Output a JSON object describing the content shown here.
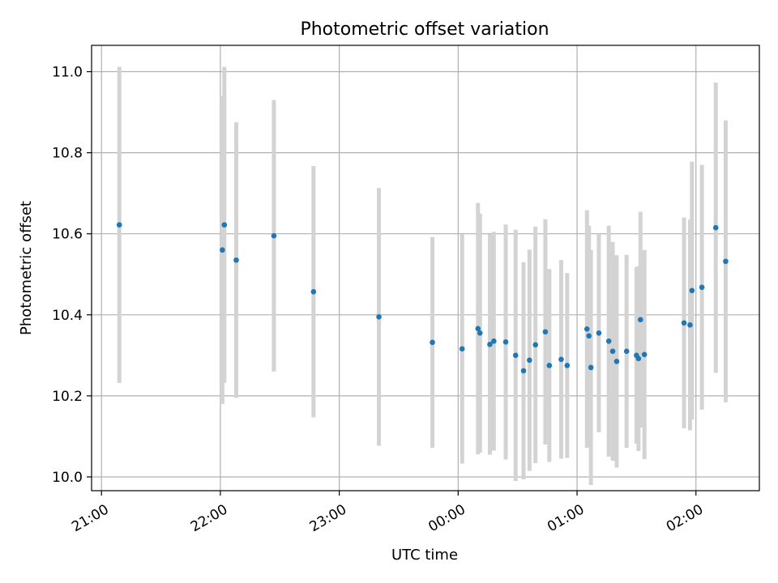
{
  "chart_data": {
    "type": "scatter",
    "title": "Photometric offset variation",
    "xlabel": "UTC time",
    "ylabel": "Photometric offset",
    "grid": true,
    "x_ticks": [
      "21:00",
      "22:00",
      "23:00",
      "00:00",
      "01:00",
      "02:00"
    ],
    "y_ticks": [
      "10.0",
      "10.2",
      "10.4",
      "10.6",
      "10.8",
      "11.0"
    ],
    "series": [
      {
        "marker_color": "#1f77b4",
        "errorbar_color": "#d3d3d3",
        "points": [
          {
            "x": "21:09",
            "y": 10.622,
            "err": 0.39
          },
          {
            "x": "22:01",
            "y": 10.56,
            "err": 0.38
          },
          {
            "x": "22:02",
            "y": 10.622,
            "err": 0.39
          },
          {
            "x": "22:08",
            "y": 10.535,
            "err": 0.34
          },
          {
            "x": "22:27",
            "y": 10.595,
            "err": 0.335
          },
          {
            "x": "22:47",
            "y": 10.457,
            "err": 0.31
          },
          {
            "x": "23:20",
            "y": 10.395,
            "err": 0.318
          },
          {
            "x": "23:47",
            "y": 10.332,
            "err": 0.26
          },
          {
            "x": "00:02",
            "y": 10.316,
            "err": 0.283
          },
          {
            "x": "00:10",
            "y": 10.366,
            "err": 0.31
          },
          {
            "x": "00:11",
            "y": 10.355,
            "err": 0.295
          },
          {
            "x": "00:16",
            "y": 10.327,
            "err": 0.272
          },
          {
            "x": "00:18",
            "y": 10.335,
            "err": 0.27
          },
          {
            "x": "00:24",
            "y": 10.333,
            "err": 0.29
          },
          {
            "x": "00:29",
            "y": 10.3,
            "err": 0.31
          },
          {
            "x": "00:33",
            "y": 10.262,
            "err": 0.268
          },
          {
            "x": "00:36",
            "y": 10.288,
            "err": 0.273
          },
          {
            "x": "00:39",
            "y": 10.326,
            "err": 0.292
          },
          {
            "x": "00:44",
            "y": 10.358,
            "err": 0.278
          },
          {
            "x": "00:46",
            "y": 10.275,
            "err": 0.238
          },
          {
            "x": "00:52",
            "y": 10.29,
            "err": 0.245
          },
          {
            "x": "00:55",
            "y": 10.275,
            "err": 0.228
          },
          {
            "x": "01:05",
            "y": 10.365,
            "err": 0.293
          },
          {
            "x": "01:06",
            "y": 10.348,
            "err": 0.272
          },
          {
            "x": "01:07",
            "y": 10.27,
            "err": 0.29
          },
          {
            "x": "01:11",
            "y": 10.355,
            "err": 0.245
          },
          {
            "x": "01:16",
            "y": 10.335,
            "err": 0.285
          },
          {
            "x": "01:18",
            "y": 10.31,
            "err": 0.27
          },
          {
            "x": "01:20",
            "y": 10.285,
            "err": 0.262
          },
          {
            "x": "01:25",
            "y": 10.31,
            "err": 0.238
          },
          {
            "x": "01:30",
            "y": 10.3,
            "err": 0.218
          },
          {
            "x": "01:31",
            "y": 10.292,
            "err": 0.228
          },
          {
            "x": "01:32",
            "y": 10.388,
            "err": 0.266
          },
          {
            "x": "01:34",
            "y": 10.302,
            "err": 0.258
          },
          {
            "x": "01:54",
            "y": 10.38,
            "err": 0.26
          },
          {
            "x": "01:57",
            "y": 10.375,
            "err": 0.26
          },
          {
            "x": "01:58",
            "y": 10.46,
            "err": 0.318
          },
          {
            "x": "02:03",
            "y": 10.468,
            "err": 0.302
          },
          {
            "x": "02:10",
            "y": 10.615,
            "err": 0.358
          },
          {
            "x": "02:15",
            "y": 10.532,
            "err": 0.348
          }
        ]
      }
    ]
  }
}
